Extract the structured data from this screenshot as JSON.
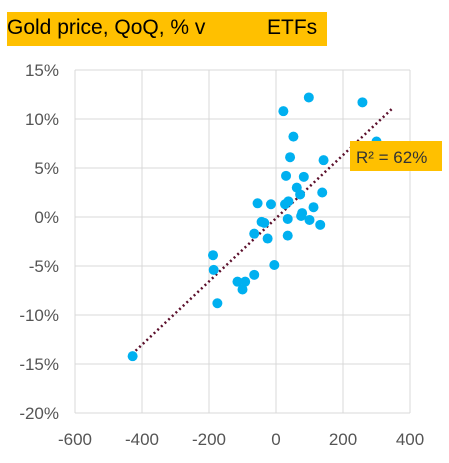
{
  "chart_data": {
    "type": "scatter",
    "title_left": "Gold price, QoQ, % v",
    "title_right": "ETFs",
    "xlim": [
      -600,
      400
    ],
    "ylim": [
      -20,
      15
    ],
    "x_ticks": [
      "-600",
      "-400",
      "-200",
      "0",
      "200",
      "400"
    ],
    "x_tick_values": [
      -600,
      -400,
      -200,
      0,
      200,
      400
    ],
    "y_ticks": [
      "15%",
      "10%",
      "5%",
      "0%",
      "-5%",
      "-10%",
      "-15%",
      "-20%"
    ],
    "y_tick_values": [
      15,
      10,
      5,
      0,
      -5,
      -10,
      -15,
      -20
    ],
    "grid": true,
    "colors": {
      "points": "#00B0F0",
      "trend": "#5B0F2B",
      "annotation": "#FFC000",
      "grid": "#D9D9D9"
    },
    "trendline": {
      "x": [
        -430,
        345
      ],
      "y": [
        -14,
        11
      ]
    },
    "annotation": "R² = 62%",
    "points": [
      {
        "x": -428,
        "y": -14.2
      },
      {
        "x": -188,
        "y": -3.9
      },
      {
        "x": -186,
        "y": -5.4
      },
      {
        "x": -175,
        "y": -8.8
      },
      {
        "x": -115,
        "y": -6.6
      },
      {
        "x": -100,
        "y": -7.4
      },
      {
        "x": -92,
        "y": -6.6
      },
      {
        "x": -65,
        "y": -5.9
      },
      {
        "x": -65,
        "y": -1.7
      },
      {
        "x": -55,
        "y": 1.4
      },
      {
        "x": -43,
        "y": -0.5
      },
      {
        "x": -35,
        "y": -0.6
      },
      {
        "x": -25,
        "y": -2.2
      },
      {
        "x": -15,
        "y": 1.3
      },
      {
        "x": -5,
        "y": -4.9
      },
      {
        "x": 22,
        "y": 10.8
      },
      {
        "x": 27,
        "y": 1.3
      },
      {
        "x": 30,
        "y": 4.2
      },
      {
        "x": 35,
        "y": -0.2
      },
      {
        "x": 35,
        "y": -1.9
      },
      {
        "x": 37,
        "y": 1.6
      },
      {
        "x": 42,
        "y": 6.1
      },
      {
        "x": 52,
        "y": 8.2
      },
      {
        "x": 62,
        "y": 3.0
      },
      {
        "x": 72,
        "y": 2.3
      },
      {
        "x": 75,
        "y": 0.1
      },
      {
        "x": 78,
        "y": 0.4
      },
      {
        "x": 83,
        "y": 4.1
      },
      {
        "x": 98,
        "y": 12.2
      },
      {
        "x": 100,
        "y": -0.3
      },
      {
        "x": 112,
        "y": 1.0
      },
      {
        "x": 132,
        "y": -0.8
      },
      {
        "x": 138,
        "y": 2.5
      },
      {
        "x": 142,
        "y": 5.8
      },
      {
        "x": 258,
        "y": 11.7
      },
      {
        "x": 300,
        "y": 7.7
      }
    ]
  }
}
